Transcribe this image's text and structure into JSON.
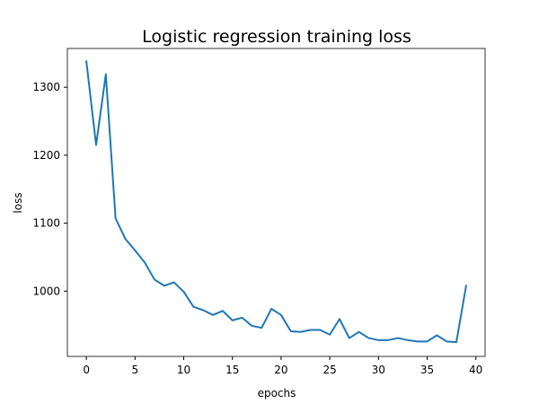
{
  "chart_data": {
    "type": "line",
    "title": "Logistic regression training loss",
    "xlabel": "epochs",
    "ylabel": "loss",
    "xlim": [
      -1.95,
      40.95
    ],
    "ylim": [
      904,
      1357
    ],
    "xticks": [
      0,
      5,
      10,
      15,
      20,
      25,
      30,
      35,
      40
    ],
    "yticks": [
      1000,
      1100,
      1200,
      1300
    ],
    "grid": false,
    "line_color": "#1f77b4",
    "series": [
      {
        "x": [
          0,
          1,
          2,
          3,
          4,
          5,
          6,
          7,
          8,
          9,
          10,
          11,
          12,
          13,
          14,
          15,
          16,
          17,
          18,
          19,
          20,
          21,
          22,
          23,
          24,
          25,
          26,
          27,
          28,
          29,
          30,
          31,
          32,
          33,
          34,
          35,
          36,
          37,
          38,
          39
        ],
        "y": [
          1338,
          1215,
          1319,
          1107,
          1077,
          1060,
          1042,
          1017,
          1008,
          1013,
          999,
          977,
          972,
          965,
          971,
          957,
          961,
          949,
          946,
          974,
          965,
          941,
          940,
          943,
          943,
          936,
          959,
          931,
          940,
          931,
          928,
          928,
          931,
          928,
          926,
          926,
          935,
          926,
          925,
          1008
        ]
      }
    ]
  }
}
